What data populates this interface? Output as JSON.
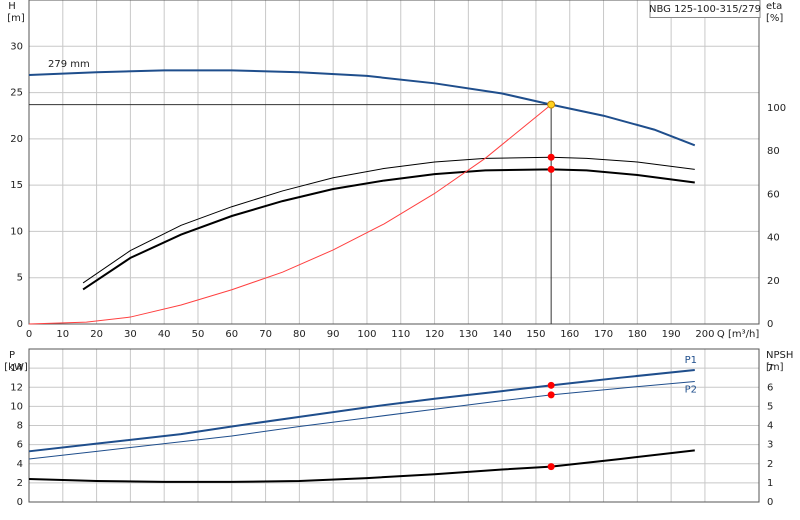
{
  "chart_data": [
    {
      "type": "line",
      "title": "NBG 125-100-315/279",
      "annotation": "279 mm",
      "xlabel": "Q [m³/h]",
      "ylabel": "H",
      "yunit": "[m]",
      "y2label": "eta",
      "y2unit": "[%]",
      "xlim": [
        0,
        216
      ],
      "xticks": [
        0,
        10,
        20,
        30,
        40,
        50,
        60,
        70,
        80,
        90,
        100,
        110,
        120,
        130,
        140,
        150,
        160,
        170,
        180,
        190,
        200
      ],
      "ylim": [
        0,
        35
      ],
      "yticks": [
        0,
        5,
        10,
        15,
        20,
        25,
        30
      ],
      "y2lim": [
        0,
        150
      ],
      "y2ticks": [
        0,
        20,
        40,
        60,
        80,
        100
      ],
      "grid": true,
      "series": [
        {
          "color": "#1f4e8c",
          "line_width": 2,
          "x": [
            0,
            20,
            40,
            60,
            80,
            100,
            120,
            140,
            154.5,
            170,
            185,
            197
          ],
          "values": [
            26.9,
            27.2,
            27.4,
            27.4,
            27.2,
            26.8,
            26.0,
            24.9,
            23.7,
            22.5,
            21.0,
            19.3
          ]
        },
        {
          "color": "#000000",
          "line_width": 1,
          "axis": "y2",
          "x": [
            16,
            30,
            45,
            60,
            75,
            90,
            105,
            120,
            135,
            154.5,
            165,
            180,
            197
          ],
          "values": [
            19,
            34,
            45.7,
            54.3,
            61.6,
            67.7,
            72,
            75,
            76.7,
            77.2,
            76.7,
            75,
            71.6
          ]
        },
        {
          "color": "#000000",
          "line_width": 2,
          "axis": "y2",
          "x": [
            16,
            30,
            45,
            60,
            75,
            90,
            105,
            120,
            135,
            154.5,
            165,
            180,
            197
          ],
          "values": [
            16,
            30.6,
            41.4,
            50,
            56.9,
            62.5,
            66.4,
            69.4,
            71.1,
            71.6,
            71.1,
            69,
            65.5
          ]
        },
        {
          "color": "#ff4040",
          "line_width": 1,
          "x": [
            0,
            17,
            30,
            45,
            60,
            75,
            90,
            105,
            120,
            135,
            154.5
          ],
          "values": [
            0,
            0.2,
            0.75,
            2.05,
            3.7,
            5.6,
            8,
            10.8,
            14.1,
            17.9,
            23.7
          ]
        }
      ],
      "points": [
        {
          "x": 154.5,
          "y": 23.7,
          "color": "#ffd21f"
        },
        {
          "x": 154.5,
          "y": 77.2,
          "axis": "y2",
          "color": "#ff0000"
        },
        {
          "x": 154.5,
          "y": 71.6,
          "axis": "y2",
          "color": "#ff0000"
        }
      ]
    },
    {
      "type": "line",
      "ylabel": "P",
      "yunit": "[kW]",
      "y2label": "NPSH",
      "y2unit": "[m]",
      "xlim": [
        0,
        216
      ],
      "ylim": [
        0,
        16
      ],
      "yticks": [
        0,
        2,
        4,
        6,
        8,
        10,
        12,
        14
      ],
      "y2lim": [
        0,
        8
      ],
      "y2ticks": [
        0,
        1,
        2,
        3,
        4,
        5,
        6,
        7
      ],
      "grid": true,
      "series": [
        {
          "name": "P1",
          "color": "#1f4e8c",
          "line_width": 2,
          "x": [
            0,
            20,
            45,
            60,
            80,
            100,
            120,
            140,
            154.5,
            175,
            197
          ],
          "values": [
            5.3,
            6.1,
            7.1,
            7.9,
            8.9,
            9.9,
            10.8,
            11.6,
            12.2,
            13.0,
            13.8
          ]
        },
        {
          "name": "P2",
          "color": "#1f4e8c",
          "line_width": 1,
          "x": [
            0,
            20,
            45,
            60,
            80,
            100,
            120,
            140,
            154.5,
            175,
            197
          ],
          "values": [
            4.5,
            5.3,
            6.3,
            6.9,
            7.9,
            8.8,
            9.7,
            10.6,
            11.2,
            11.9,
            12.6
          ]
        },
        {
          "color": "#000000",
          "line_width": 2,
          "axis": "y2",
          "x": [
            0,
            20,
            40,
            60,
            80,
            100,
            120,
            140,
            154.5,
            175,
            197
          ],
          "values": [
            1.2,
            1.1,
            1.05,
            1.05,
            1.1,
            1.25,
            1.45,
            1.7,
            1.85,
            2.25,
            2.7
          ]
        }
      ],
      "points": [
        {
          "x": 154.5,
          "y": 12.2,
          "color": "#ff0000"
        },
        {
          "x": 154.5,
          "y": 11.2,
          "color": "#ff0000"
        },
        {
          "x": 154.5,
          "y": 1.85,
          "axis": "y2",
          "color": "#ff0000"
        }
      ]
    }
  ]
}
